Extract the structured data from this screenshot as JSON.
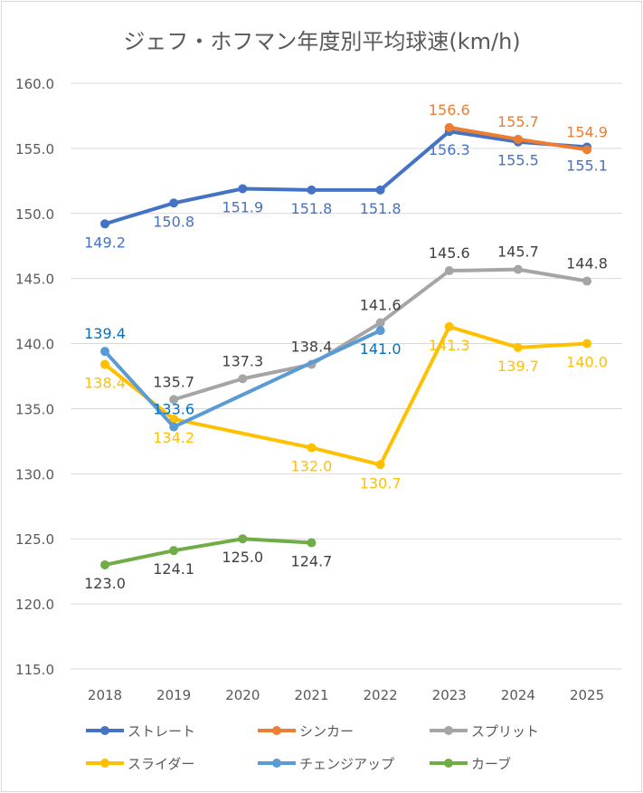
{
  "chart_data": {
    "type": "line",
    "title": "ジェフ・ホフマン年度別平均球速(km/h)",
    "xlabel": "",
    "ylabel": "",
    "categories": [
      "2018",
      "2019",
      "2020",
      "2021",
      "2022",
      "2023",
      "2024",
      "2025"
    ],
    "ylim": [
      115,
      160
    ],
    "yticks": [
      "160.0",
      "155.0",
      "150.0",
      "145.0",
      "140.0",
      "135.0",
      "130.0",
      "125.0",
      "120.0",
      "115.0"
    ],
    "ytick_values": [
      160,
      155,
      150,
      145,
      140,
      135,
      130,
      125,
      120,
      115
    ],
    "grid": true,
    "legend_position": "bottom",
    "series": [
      {
        "name": "ストレート",
        "color": "#4472C4",
        "label_color": "#4472C4",
        "label_pos": [
          "below",
          "below",
          "below",
          "below",
          "below",
          "below",
          "below",
          "below"
        ],
        "values": [
          149.2,
          150.8,
          151.9,
          151.8,
          151.8,
          156.3,
          155.5,
          155.1
        ],
        "labels": [
          "149.2",
          "150.8",
          "151.9",
          "151.8",
          "151.8",
          "156.3",
          "155.5",
          "155.1"
        ]
      },
      {
        "name": "シンカー",
        "color": "#ED7D31",
        "label_color": "#ED7D31",
        "label_pos": [
          "above",
          "above",
          "above",
          "above",
          "above",
          "above",
          "above",
          "above"
        ],
        "values": [
          null,
          null,
          null,
          null,
          null,
          156.6,
          155.7,
          154.9
        ],
        "labels": [
          null,
          null,
          null,
          null,
          null,
          "156.6",
          "155.7",
          "154.9"
        ]
      },
      {
        "name": "スプリット",
        "color": "#A5A5A5",
        "label_color": "#404040",
        "label_pos": [
          "above",
          "above",
          "above",
          "above",
          "above",
          "above",
          "above",
          "above"
        ],
        "values": [
          null,
          135.7,
          137.3,
          138.4,
          141.6,
          145.6,
          145.7,
          144.8
        ],
        "labels": [
          null,
          "135.7",
          "137.3",
          "138.4",
          "141.6",
          "145.6",
          "145.7",
          "144.8"
        ]
      },
      {
        "name": "スライダー",
        "color": "#FFC000",
        "label_color": "#FFC000",
        "label_pos": [
          "below",
          "below",
          "below",
          "below",
          "below",
          "below",
          "below",
          "below"
        ],
        "values": [
          138.4,
          134.2,
          null,
          132.0,
          130.7,
          141.3,
          139.7,
          140.0
        ],
        "labels": [
          "138.4",
          "134.2",
          null,
          "132.0",
          "130.7",
          "141.3",
          "139.7",
          "140.0"
        ]
      },
      {
        "name": "チェンジアップ",
        "color": "#5B9BD5",
        "label_color": "#0070C0",
        "label_pos": [
          "above",
          "below",
          "below",
          "below",
          "below",
          "below",
          "below",
          "below"
        ],
        "values": [
          139.4,
          133.6,
          null,
          null,
          141.0,
          null,
          null,
          null
        ],
        "labels": [
          "139.4",
          "133.6",
          null,
          null,
          "141.0",
          null,
          null,
          null
        ]
      },
      {
        "name": "カーブ",
        "color": "#70AD47",
        "label_color": "#404040",
        "label_pos": [
          "below",
          "below",
          "below",
          "below",
          "below",
          "below",
          "below",
          "below"
        ],
        "values": [
          123.0,
          124.1,
          125.0,
          124.7,
          null,
          null,
          null,
          null
        ],
        "labels": [
          "123.0",
          "124.1",
          "125.0",
          "124.7",
          null,
          null,
          null,
          null
        ]
      }
    ]
  }
}
